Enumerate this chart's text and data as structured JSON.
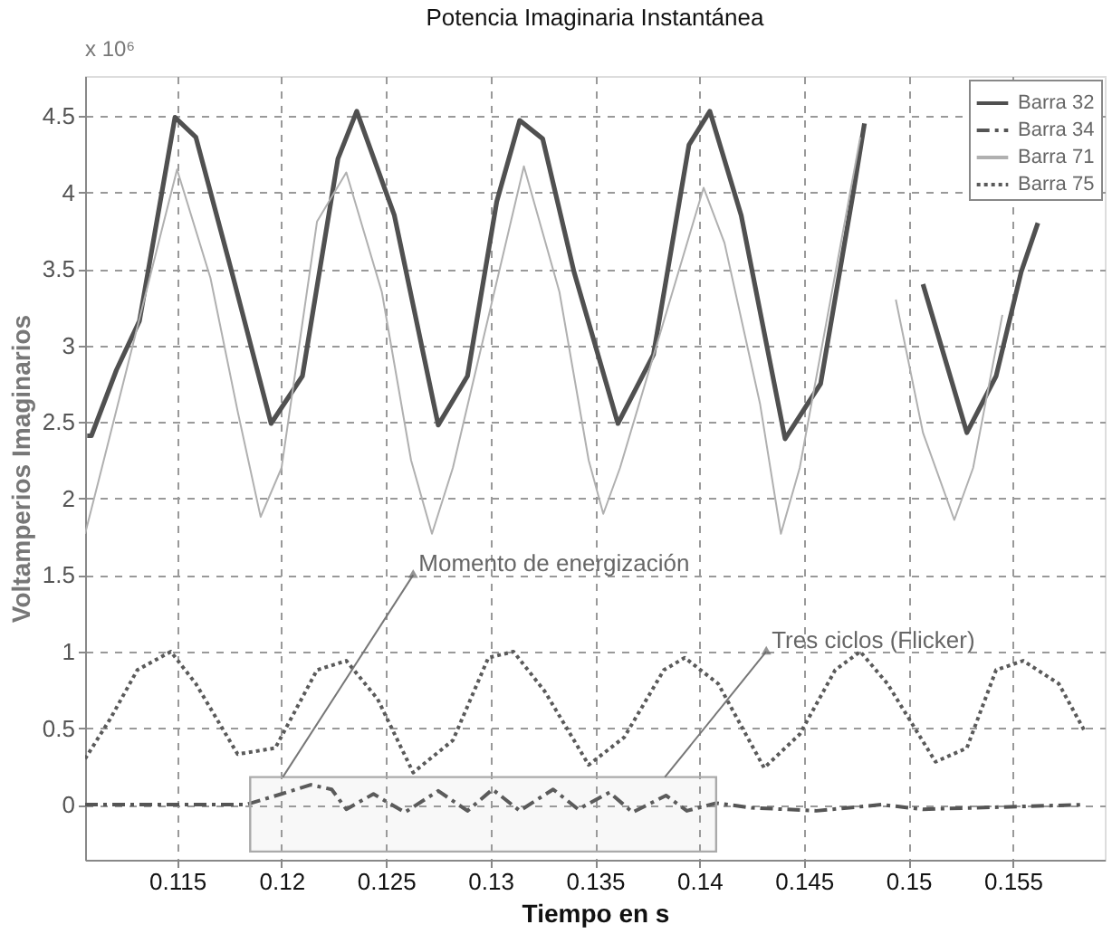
{
  "chart_data": {
    "type": "line",
    "title": "Potencia Imaginaria Instantánea",
    "xlabel": "Tiempo en s",
    "ylabel": "Voltamperios Imaginarios",
    "xlim": [
      0.1106,
      0.1594
    ],
    "ylim": [
      -0.36,
      4.76
    ],
    "xticks": [
      0.115,
      0.12,
      0.125,
      0.13,
      0.135,
      0.14,
      0.145,
      0.15,
      0.155
    ],
    "yticks": [
      0,
      0.5,
      1,
      1.5,
      2,
      2.5,
      3,
      3.5,
      4,
      4.5
    ],
    "grid": true,
    "legend": "top right",
    "series": [
      {
        "name": "Barra 32",
        "color": "#505050",
        "line_style": "solid",
        "x": [
          0.1107,
          0.1109,
          0.1121,
          0.1132,
          0.1149,
          0.1159,
          0.1176,
          0.1195,
          0.121,
          0.1227,
          0.1236,
          0.1254,
          0.1275,
          0.1289,
          0.1303,
          0.1314,
          0.1325,
          0.134,
          0.1361,
          0.1378,
          0.1395,
          0.1405,
          0.142,
          0.1441,
          0.1458,
          0.1474,
          0.1479,
          0.149,
          0.1507,
          0.1528,
          0.1542,
          0.1554,
          0.1562
        ],
        "values": [
          2.41,
          2.41,
          2.84,
          3.16,
          4.49,
          4.36,
          3.49,
          2.49,
          2.8,
          4.22,
          4.53,
          3.85,
          2.48,
          2.8,
          3.94,
          4.47,
          4.35,
          3.48,
          2.49,
          2.94,
          4.31,
          4.53,
          3.85,
          2.39,
          2.75,
          4.03,
          4.45,
          null,
          3.4,
          2.43,
          2.8,
          3.48,
          3.8
        ]
      },
      {
        "name": "Barra 34",
        "color": "#555555",
        "line_style": "dashed",
        "x": [
          0.1106,
          0.1183,
          0.12,
          0.1214,
          0.1224,
          0.1231,
          0.1244,
          0.1259,
          0.1275,
          0.1289,
          0.1301,
          0.1314,
          0.133,
          0.1342,
          0.1357,
          0.1368,
          0.1384,
          0.1394,
          0.1408,
          0.1425,
          0.1456,
          0.1487,
          0.1507,
          0.1584
        ],
        "values": [
          0,
          0,
          0.07,
          0.13,
          0.1,
          -0.03,
          0.07,
          -0.05,
          0.09,
          -0.04,
          0.1,
          -0.04,
          0.1,
          -0.03,
          0.08,
          -0.05,
          0.06,
          -0.04,
          0.01,
          -0.02,
          -0.04,
          0,
          -0.03,
          0
        ]
      },
      {
        "name": "Barra 71",
        "color": "#b0b0b0",
        "line_style": "solid",
        "x": [
          0.1106,
          0.1114,
          0.115,
          0.1166,
          0.1179,
          0.119,
          0.12,
          0.1217,
          0.1231,
          0.1248,
          0.1262,
          0.1272,
          0.1282,
          0.1316,
          0.1333,
          0.1347,
          0.1354,
          0.1362,
          0.1402,
          0.1412,
          0.1429,
          0.1439,
          0.1448,
          0.1477,
          0.1485,
          0.1494,
          0.1507,
          0.1522,
          0.1531,
          0.1545
        ],
        "values": [
          1.77,
          2.2,
          4.15,
          3.44,
          2.57,
          1.88,
          2.2,
          3.81,
          4.13,
          3.35,
          2.25,
          1.77,
          2.2,
          4.17,
          3.35,
          2.25,
          1.9,
          2.2,
          4.03,
          3.67,
          2.62,
          1.77,
          2.2,
          4.36,
          null,
          3.3,
          2.43,
          1.86,
          2.2,
          3.2
        ]
      },
      {
        "name": "Barra 75",
        "color": "#5a5a5a",
        "line_style": "dotted",
        "x": [
          0.1106,
          0.1118,
          0.1131,
          0.1147,
          0.1159,
          0.1179,
          0.1197,
          0.1217,
          0.1231,
          0.1246,
          0.1263,
          0.1282,
          0.1299,
          0.1311,
          0.1326,
          0.1347,
          0.1364,
          0.1383,
          0.1393,
          0.1409,
          0.1431,
          0.1448,
          0.1465,
          0.1477,
          0.149,
          0.1513,
          0.1528,
          0.1542,
          0.1555,
          0.1572,
          0.1584
        ],
        "values": [
          0.3,
          0.56,
          0.88,
          1.0,
          0.79,
          0.33,
          0.37,
          0.88,
          0.94,
          0.69,
          0.21,
          0.42,
          0.96,
          1.0,
          0.74,
          0.26,
          0.44,
          0.88,
          0.96,
          0.79,
          0.24,
          0.46,
          0.88,
          1.0,
          0.79,
          0.28,
          0.37,
          0.88,
          0.94,
          0.79,
          0.49
        ]
      }
    ],
    "bands": [
      {
        "axis": "x",
        "from": 0.1185,
        "to": 0.1408,
        "color": "#aaaaaa"
      }
    ],
    "annotations": [
      "x 10⁶",
      {
        "text": "Momento de energización",
        "x": 0.1263,
        "y": 1.5
      },
      {
        "text": "Tres ciclos (Flicker)",
        "x": 0.1432,
        "y": 1.0
      }
    ]
  }
}
